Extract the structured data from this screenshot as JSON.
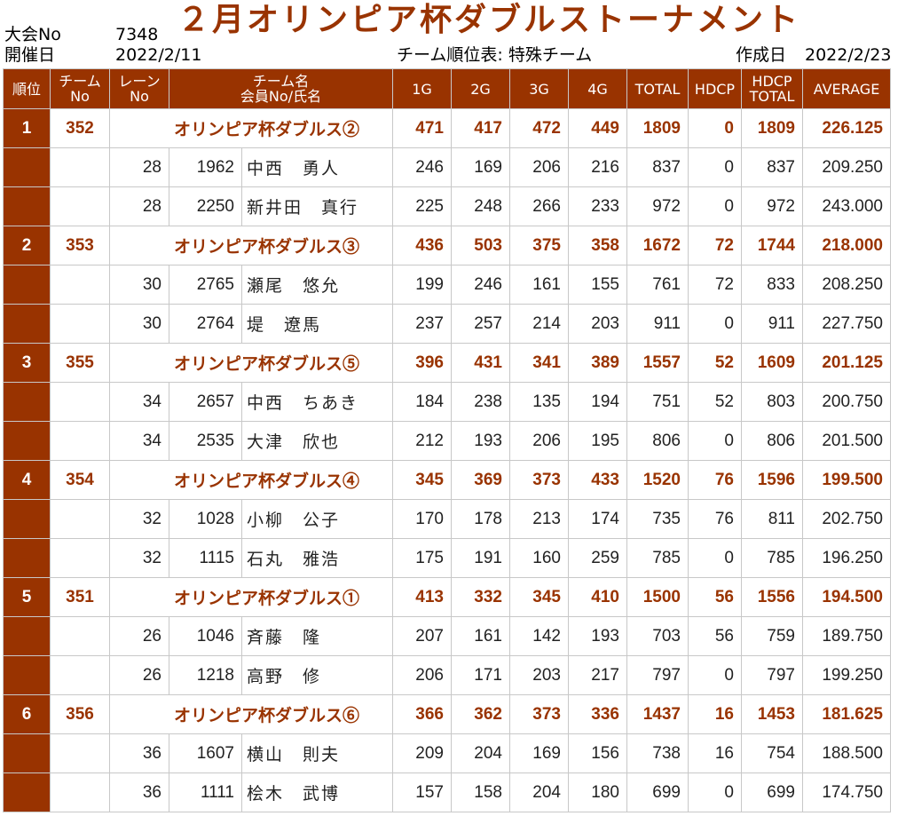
{
  "header": {
    "event_no_label": "大会No",
    "event_no": "7348",
    "date_label": "開催日",
    "date": "2022/2/11",
    "title": "２月オリンピア杯ダブルストーナメント",
    "subtitle": "チーム順位表: 特殊チーム",
    "created_label": "作成日",
    "created_date": "2022/2/23"
  },
  "columns": {
    "rank": "順位",
    "team_no": "チーム\nNo",
    "lane_no": "レーン\nNo",
    "team_name": "チーム名\n会員No/氏名",
    "g1": "1G",
    "g2": "2G",
    "g3": "3G",
    "g4": "4G",
    "total": "TOTAL",
    "hdcp": "HDCP",
    "hdcp_total": "HDCP\nTOTAL",
    "average": "AVERAGE"
  },
  "teams": [
    {
      "rank": "1",
      "team_no": "352",
      "name": "オリンピア杯ダブルス②",
      "g1": "471",
      "g2": "417",
      "g3": "472",
      "g4": "449",
      "total": "1809",
      "hdcp": "0",
      "hdcp_total": "1809",
      "average": "226.125",
      "players": [
        {
          "lane": "28",
          "member_no": "1962",
          "name": "中西　勇人",
          "g1": "246",
          "g2": "169",
          "g3": "206",
          "g4": "216",
          "total": "837",
          "hdcp": "0",
          "hdcp_total": "837",
          "average": "209.250"
        },
        {
          "lane": "28",
          "member_no": "2250",
          "name": "新井田　真行",
          "g1": "225",
          "g2": "248",
          "g3": "266",
          "g4": "233",
          "total": "972",
          "hdcp": "0",
          "hdcp_total": "972",
          "average": "243.000"
        }
      ]
    },
    {
      "rank": "2",
      "team_no": "353",
      "name": "オリンピア杯ダブルス③",
      "g1": "436",
      "g2": "503",
      "g3": "375",
      "g4": "358",
      "total": "1672",
      "hdcp": "72",
      "hdcp_total": "1744",
      "average": "218.000",
      "players": [
        {
          "lane": "30",
          "member_no": "2765",
          "name": "瀬尾　悠允",
          "g1": "199",
          "g2": "246",
          "g3": "161",
          "g4": "155",
          "total": "761",
          "hdcp": "72",
          "hdcp_total": "833",
          "average": "208.250"
        },
        {
          "lane": "30",
          "member_no": "2764",
          "name": "堤　遼馬",
          "g1": "237",
          "g2": "257",
          "g3": "214",
          "g4": "203",
          "total": "911",
          "hdcp": "0",
          "hdcp_total": "911",
          "average": "227.750"
        }
      ]
    },
    {
      "rank": "3",
      "team_no": "355",
      "name": "オリンピア杯ダブルス⑤",
      "g1": "396",
      "g2": "431",
      "g3": "341",
      "g4": "389",
      "total": "1557",
      "hdcp": "52",
      "hdcp_total": "1609",
      "average": "201.125",
      "players": [
        {
          "lane": "34",
          "member_no": "2657",
          "name": "中西　ちあき",
          "g1": "184",
          "g2": "238",
          "g3": "135",
          "g4": "194",
          "total": "751",
          "hdcp": "52",
          "hdcp_total": "803",
          "average": "200.750"
        },
        {
          "lane": "34",
          "member_no": "2535",
          "name": "大津　欣也",
          "g1": "212",
          "g2": "193",
          "g3": "206",
          "g4": "195",
          "total": "806",
          "hdcp": "0",
          "hdcp_total": "806",
          "average": "201.500"
        }
      ]
    },
    {
      "rank": "4",
      "team_no": "354",
      "name": "オリンピア杯ダブルス④",
      "g1": "345",
      "g2": "369",
      "g3": "373",
      "g4": "433",
      "total": "1520",
      "hdcp": "76",
      "hdcp_total": "1596",
      "average": "199.500",
      "players": [
        {
          "lane": "32",
          "member_no": "1028",
          "name": "小柳　公子",
          "g1": "170",
          "g2": "178",
          "g3": "213",
          "g4": "174",
          "total": "735",
          "hdcp": "76",
          "hdcp_total": "811",
          "average": "202.750"
        },
        {
          "lane": "32",
          "member_no": "1115",
          "name": "石丸　雅浩",
          "g1": "175",
          "g2": "191",
          "g3": "160",
          "g4": "259",
          "total": "785",
          "hdcp": "0",
          "hdcp_total": "785",
          "average": "196.250"
        }
      ]
    },
    {
      "rank": "5",
      "team_no": "351",
      "name": "オリンピア杯ダブルス①",
      "g1": "413",
      "g2": "332",
      "g3": "345",
      "g4": "410",
      "total": "1500",
      "hdcp": "56",
      "hdcp_total": "1556",
      "average": "194.500",
      "players": [
        {
          "lane": "26",
          "member_no": "1046",
          "name": "斉藤　隆",
          "g1": "207",
          "g2": "161",
          "g3": "142",
          "g4": "193",
          "total": "703",
          "hdcp": "56",
          "hdcp_total": "759",
          "average": "189.750"
        },
        {
          "lane": "26",
          "member_no": "1218",
          "name": "高野　修",
          "g1": "206",
          "g2": "171",
          "g3": "203",
          "g4": "217",
          "total": "797",
          "hdcp": "0",
          "hdcp_total": "797",
          "average": "199.250"
        }
      ]
    },
    {
      "rank": "6",
      "team_no": "356",
      "name": "オリンピア杯ダブルス⑥",
      "g1": "366",
      "g2": "362",
      "g3": "373",
      "g4": "336",
      "total": "1437",
      "hdcp": "16",
      "hdcp_total": "1453",
      "average": "181.625",
      "players": [
        {
          "lane": "36",
          "member_no": "1607",
          "name": "横山　則夫",
          "g1": "209",
          "g2": "204",
          "g3": "169",
          "g4": "156",
          "total": "738",
          "hdcp": "16",
          "hdcp_total": "754",
          "average": "188.500"
        },
        {
          "lane": "36",
          "member_no": "1111",
          "name": "桧木　武博",
          "g1": "157",
          "g2": "158",
          "g3": "204",
          "g4": "180",
          "total": "699",
          "hdcp": "0",
          "hdcp_total": "699",
          "average": "174.750"
        }
      ]
    }
  ],
  "colors": {
    "accent": "#993300",
    "grid": "#c8c8c8"
  }
}
